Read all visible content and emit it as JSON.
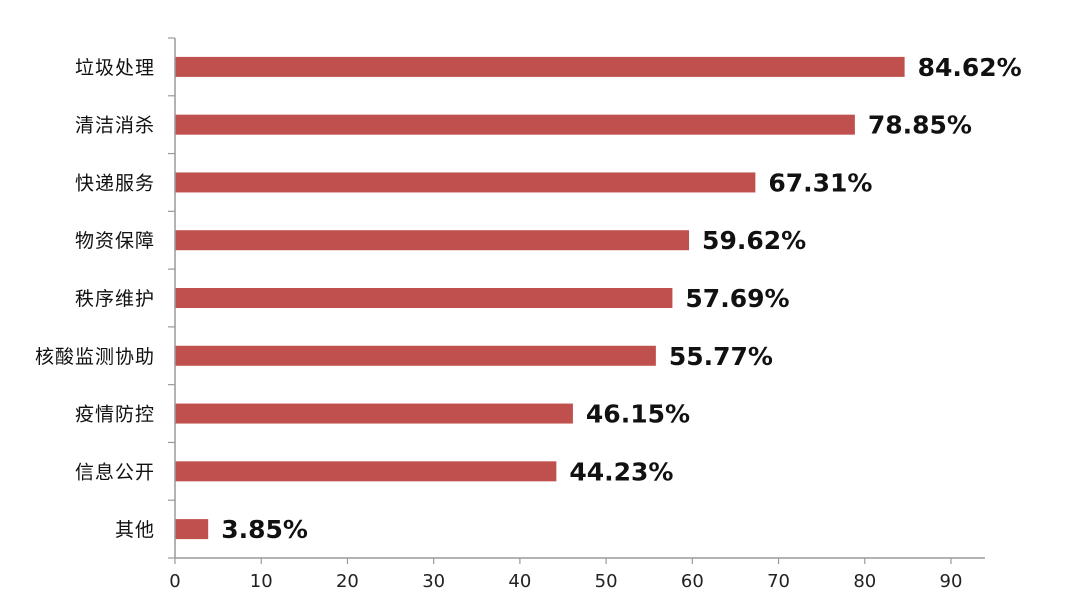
{
  "chart_data": {
    "type": "bar",
    "orientation": "horizontal",
    "title": "",
    "xlabel": "",
    "ylabel": "",
    "xlim": [
      0,
      90
    ],
    "x_ticks": [
      0,
      10,
      20,
      30,
      40,
      50,
      60,
      70,
      80,
      90
    ],
    "grid": false,
    "legend": "none",
    "bar_color": "#c0504d",
    "categories": [
      "垃圾处理",
      "清洁消杀",
      "快递服务",
      "物资保障",
      "秩序维护",
      "核酸监测协助",
      "疫情防控",
      "信息公开",
      "其他"
    ],
    "values": [
      84.62,
      78.85,
      67.31,
      59.62,
      57.69,
      55.77,
      46.15,
      44.23,
      3.85
    ],
    "value_labels": [
      "84.62%",
      "78.85%",
      "67.31%",
      "59.62%",
      "57.69%",
      "55.77%",
      "46.15%",
      "44.23%",
      "3.85%"
    ]
  }
}
